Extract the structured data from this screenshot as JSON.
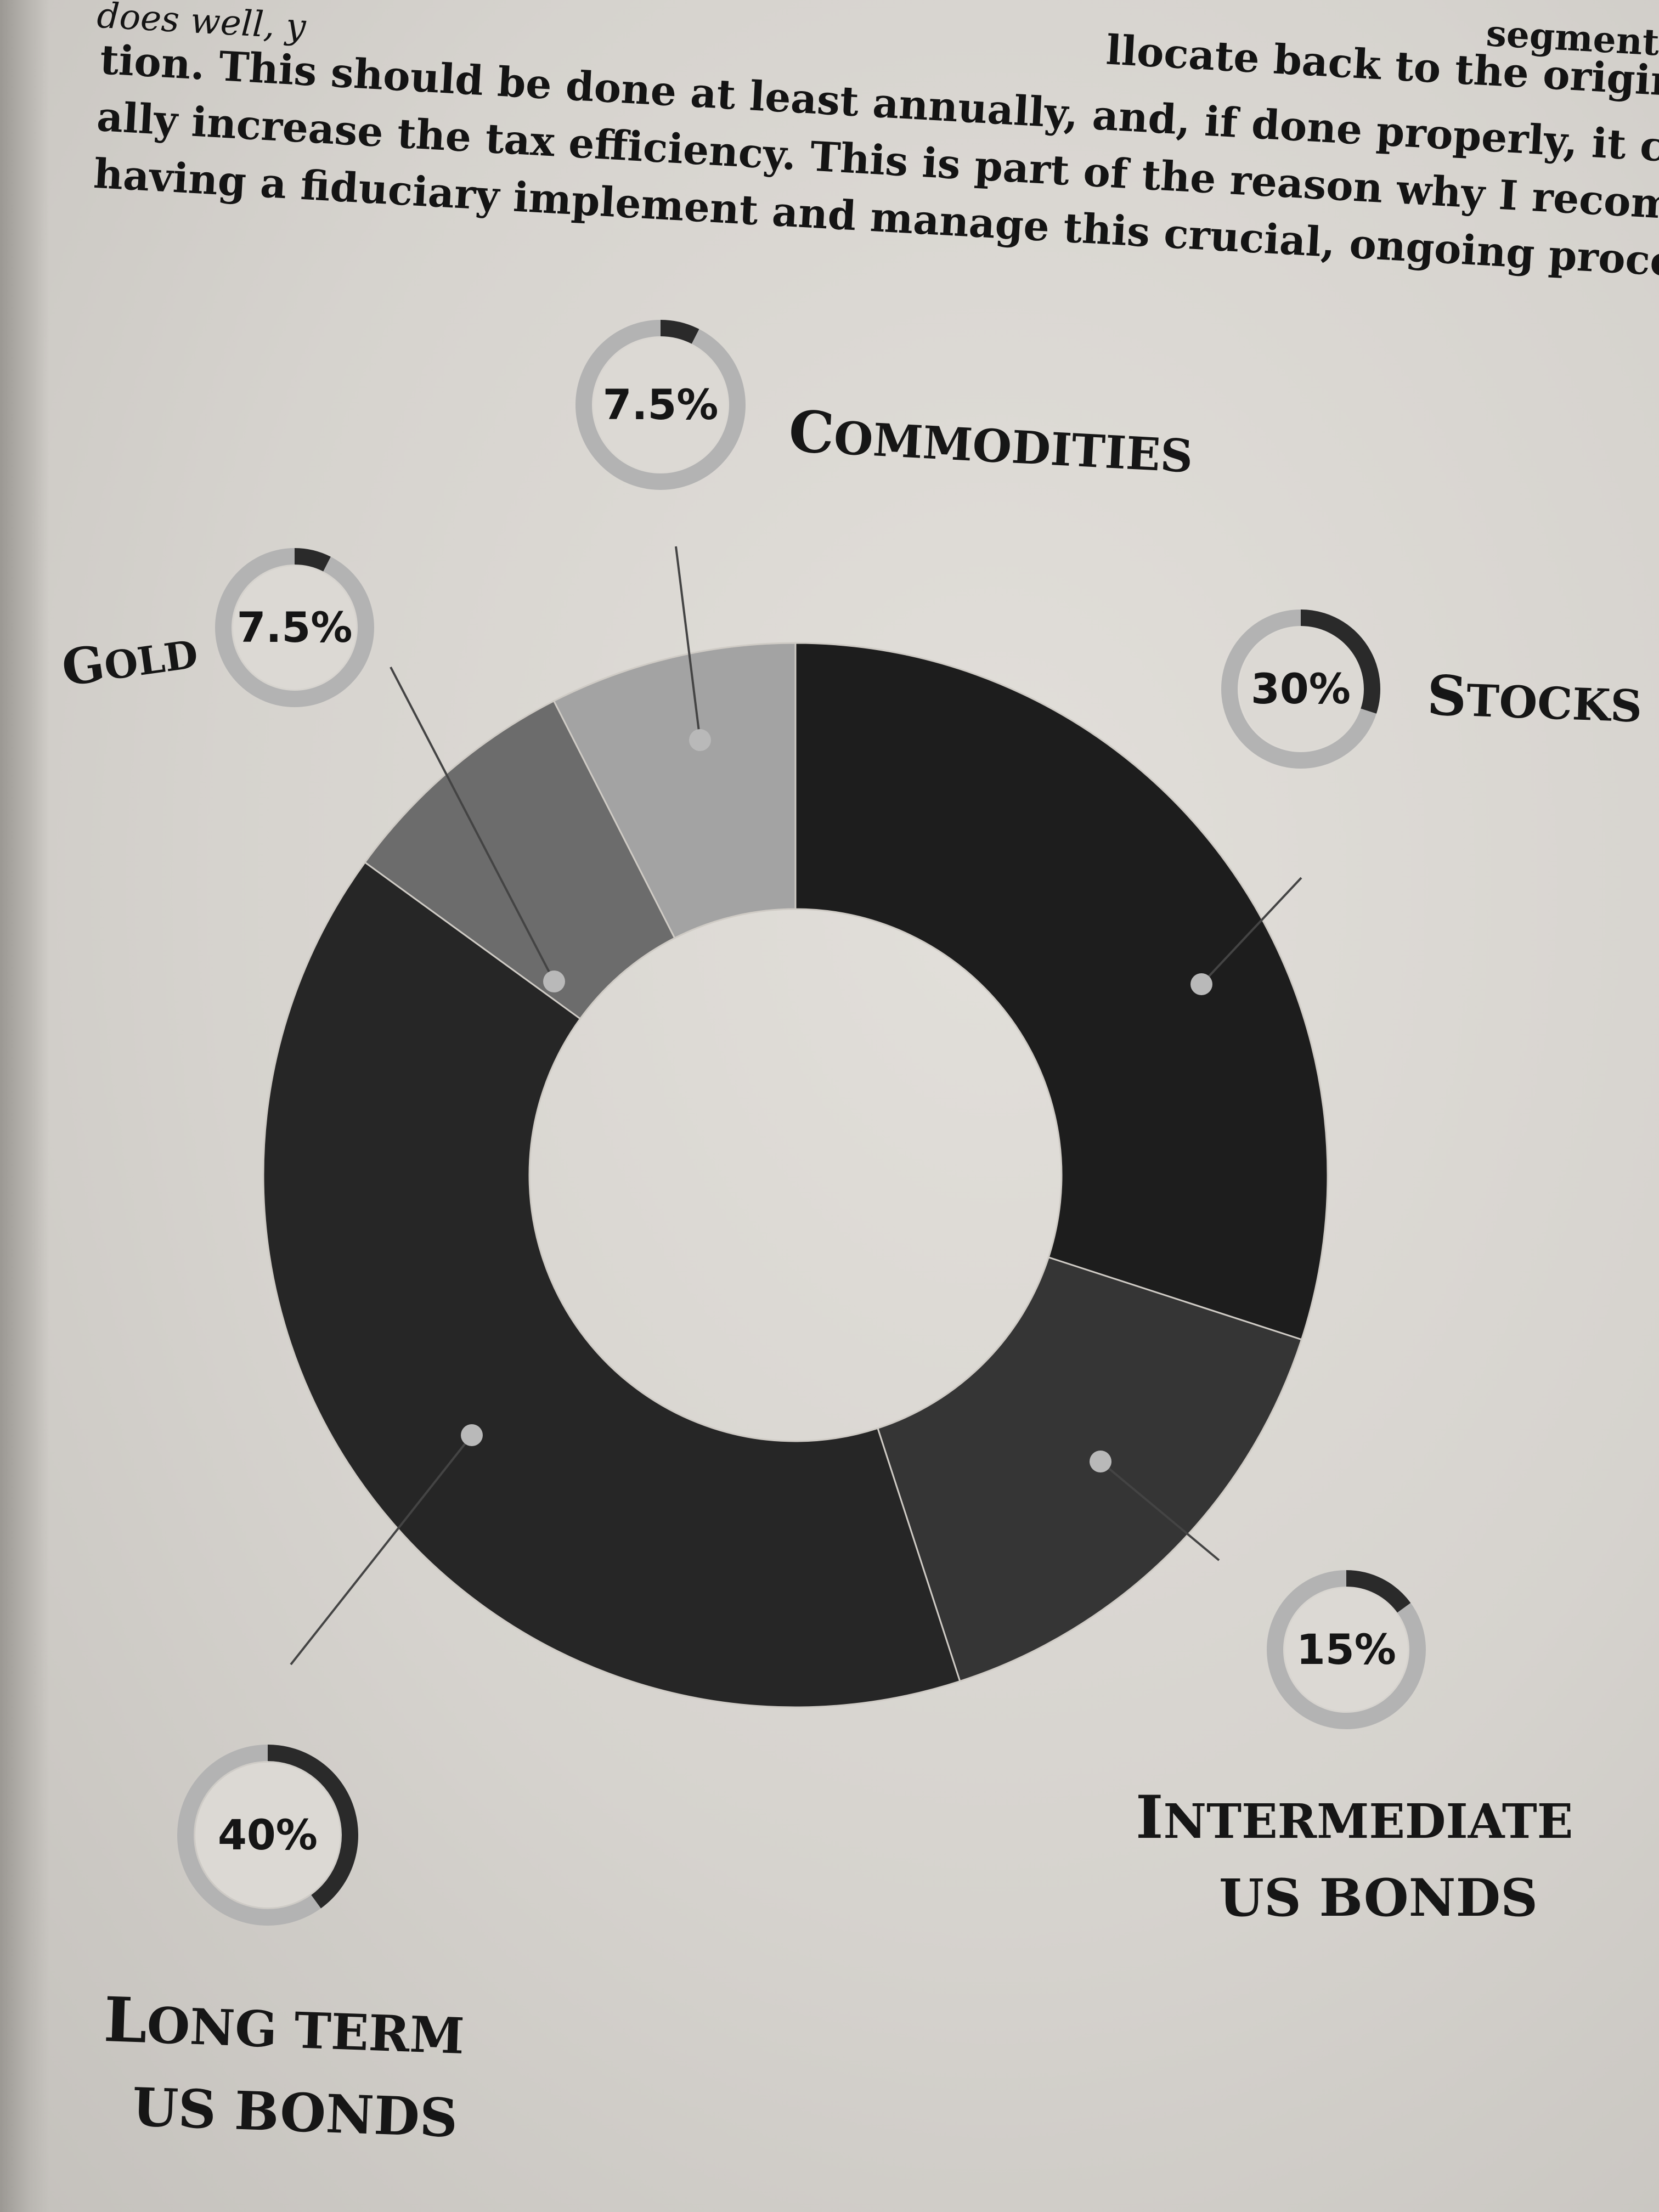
{
  "page_text": {
    "lines": [
      "does well, y",
      "llocate back to the original alloca-",
      "segment",
      "tion. This should be done at least annually, and, if done properly, it can actu-",
      "ally increase the tax efficiency. This is part of the reason why I recommend",
      "having a fiduciary implement and manage this crucial, ongoing process."
    ]
  },
  "chart_data": {
    "type": "pie",
    "style": "donut",
    "slices": [
      {
        "label": "Stocks",
        "value": 30,
        "display": "30%",
        "color": "#1d1d1d"
      },
      {
        "label": "Intermediate US Bonds",
        "value": 15,
        "display": "15%",
        "color": "#353535"
      },
      {
        "label": "Long Term US Bonds",
        "value": 40,
        "display": "40%",
        "color": "#262626"
      },
      {
        "label": "Gold",
        "value": 7.5,
        "display": "7.5%",
        "color": "#6c6c6c"
      },
      {
        "label": "Commodities",
        "value": 7.5,
        "display": "7.5%",
        "color": "#a3a3a3"
      }
    ],
    "labels": {
      "stocks": {
        "line1": "Stocks",
        "line2": ""
      },
      "intermediate": {
        "line1": "Intermediate",
        "line2": "US Bonds"
      },
      "long_term": {
        "line1": "Long Term",
        "line2": "US Bonds"
      },
      "gold": {
        "line1": "Gold",
        "line2": ""
      },
      "commodities": {
        "line1": "Commodities",
        "line2": ""
      }
    }
  }
}
